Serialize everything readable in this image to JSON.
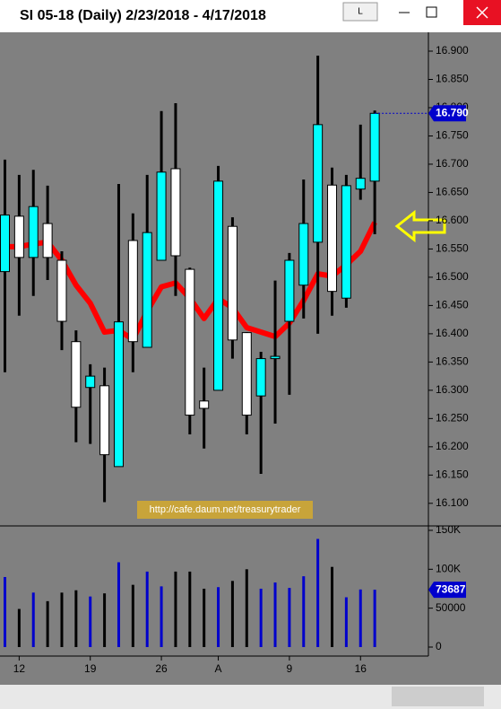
{
  "window": {
    "title": "SI 05-18 (Daily)  2/23/2018 - 4/17/2018",
    "button": "L"
  },
  "watermark": "http://cafe.daum.net/treasurytrader",
  "chart_data": [
    {
      "type": "candlestick",
      "open": [
        16.51,
        16.608,
        16.535,
        16.595,
        16.53,
        16.386,
        16.305,
        16.308,
        16.165,
        16.565,
        16.376,
        16.53,
        16.692,
        16.514,
        16.281,
        16.3,
        16.59,
        16.402,
        16.29,
        16.356,
        16.422,
        16.486,
        16.562,
        16.663,
        16.463,
        16.656,
        16.67
      ],
      "high": [
        16.708,
        16.681,
        16.69,
        16.662,
        16.546,
        16.406,
        16.346,
        16.34,
        16.665,
        16.613,
        16.681,
        16.794,
        16.808,
        16.517,
        16.34,
        16.697,
        16.606,
        16.403,
        16.368,
        16.494,
        16.543,
        16.673,
        16.892,
        16.694,
        16.681,
        16.77,
        16.795
      ],
      "low": [
        16.332,
        16.432,
        16.467,
        16.495,
        16.371,
        16.208,
        16.205,
        16.102,
        16.165,
        16.332,
        16.376,
        16.53,
        16.467,
        16.222,
        16.197,
        16.3,
        16.356,
        16.222,
        16.152,
        16.241,
        16.292,
        16.427,
        16.4,
        16.432,
        16.446,
        16.637,
        16.576
      ],
      "close": [
        16.61,
        16.535,
        16.625,
        16.535,
        16.422,
        16.27,
        16.325,
        16.186,
        16.421,
        16.386,
        16.579,
        16.686,
        16.538,
        16.256,
        16.268,
        16.67,
        16.389,
        16.256,
        16.356,
        16.36,
        16.53,
        16.595,
        16.77,
        16.475,
        16.662,
        16.675,
        16.79
      ],
      "up_color": "#00ffff",
      "down_color": "#ffffff",
      "overlay": {
        "color": "#ff0000",
        "values": [
          16.554,
          16.554,
          16.559,
          16.562,
          16.53,
          16.486,
          16.454,
          16.403,
          16.406,
          16.39,
          16.44,
          16.483,
          16.49,
          16.463,
          16.427,
          16.462,
          16.446,
          16.411,
          16.403,
          16.395,
          16.419,
          16.459,
          16.506,
          16.502,
          16.522,
          16.546,
          16.597
        ]
      },
      "last_value_label": "16.790",
      "ylim": [
        16.06,
        16.927
      ],
      "yticks": [
        {
          "value": 16.1,
          "label": "16.100"
        },
        {
          "value": 16.15,
          "label": "16.150"
        },
        {
          "value": 16.2,
          "label": "16.200"
        },
        {
          "value": 16.25,
          "label": "16.250"
        },
        {
          "value": 16.3,
          "label": "16.300"
        },
        {
          "value": 16.35,
          "label": "16.350"
        },
        {
          "value": 16.4,
          "label": "16.400"
        },
        {
          "value": 16.45,
          "label": "16.450"
        },
        {
          "value": 16.5,
          "label": "16.500"
        },
        {
          "value": 16.55,
          "label": "16.550"
        },
        {
          "value": 16.6,
          "label": "16.600"
        },
        {
          "value": 16.65,
          "label": "16.650"
        },
        {
          "value": 16.7,
          "label": "16.700"
        },
        {
          "value": 16.75,
          "label": "16.750"
        },
        {
          "value": 16.8,
          "label": "16.800"
        },
        {
          "value": 16.85,
          "label": "16.850"
        },
        {
          "value": 16.9,
          "label": "16.900"
        }
      ]
    },
    {
      "type": "bar",
      "categories": [
        null,
        "12",
        null,
        null,
        null,
        null,
        "19",
        null,
        null,
        null,
        null,
        "26",
        null,
        null,
        null,
        "A",
        null,
        null,
        null,
        null,
        "9",
        null,
        null,
        null,
        null,
        "16",
        null
      ],
      "values": [
        90000,
        49000,
        70000,
        59000,
        70000,
        73000,
        65000,
        69000,
        109000,
        80000,
        97000,
        78000,
        97000,
        97000,
        75000,
        77000,
        85000,
        100000,
        75000,
        83000,
        76000,
        91000,
        139000,
        103000,
        64000,
        74000,
        73687
      ],
      "up_color": "#0000cc",
      "down_color": "#000000",
      "last_value_label": "73687",
      "ylim": [
        0,
        155700
      ],
      "yticks": [
        {
          "value": 150000,
          "label": "150K"
        },
        {
          "value": 100000,
          "label": "100K"
        },
        50000,
        0
      ]
    }
  ]
}
